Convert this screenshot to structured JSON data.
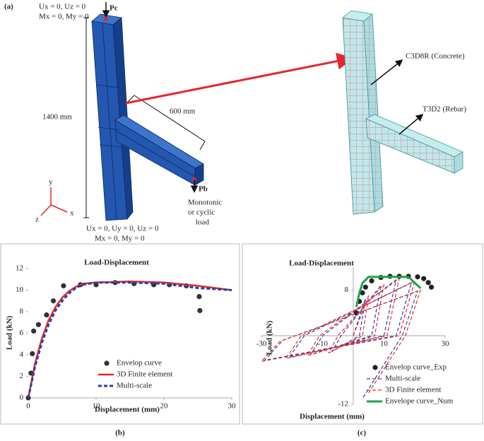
{
  "panel_a": {
    "label": "(a)",
    "top_load": "Pc",
    "top_bc_1": "Ux = 0, Uz = 0",
    "top_bc_2": "Mx = 0, My = 0",
    "height_dim": "1400 mm",
    "beam_dim": "600 mm",
    "beam_load": "Pb",
    "load_note": [
      "Monotonic",
      "or cyclic",
      "load"
    ],
    "bottom_bc_1": "Ux = 0, Uy = 0, Uz = 0",
    "bottom_bc_2": "Mx = 0, My = 0",
    "concrete_label": "C3D8R (Concrete)",
    "rebar_label": "T3D2 (Rebar)",
    "axis_y": "y",
    "axis_x": "x",
    "axis_z": "z"
  },
  "chart_data": [
    {
      "type": "line",
      "panel_label": "(b)",
      "title": "Load-Displacement",
      "x_label": "Displacement (mm)",
      "y_label": "Load (kN)",
      "xlim": [
        0,
        30
      ],
      "xticks": [
        0,
        10,
        20,
        30
      ],
      "ylim": [
        0,
        12
      ],
      "yticks": [
        0,
        2,
        4,
        6,
        8,
        10,
        12
      ],
      "axes_at_origin": false,
      "legend": "lower right",
      "series": [
        {
          "name": "Envelop curve",
          "color": "#333333",
          "style": "markers",
          "x": [
            0,
            0.4,
            0.6,
            0.8,
            1.5,
            2.7,
            3.7,
            5.2,
            7.7,
            10,
            12.8,
            15.6,
            18.5,
            20.8,
            23.3,
            25.2,
            25.3
          ],
          "values": [
            0,
            2.3,
            4.1,
            6.2,
            6.8,
            7.7,
            9.0,
            10.4,
            10.5,
            10.5,
            10.7,
            10.6,
            10.5,
            10.5,
            10.4,
            9.4,
            8.1
          ]
        },
        {
          "name": "3D Finite element",
          "color": "#e8262b",
          "style": "solid",
          "line_width": 2.5,
          "x": [
            0,
            1,
            2,
            3,
            4,
            5,
            6,
            7,
            8,
            10,
            15,
            20,
            25,
            30
          ],
          "values": [
            0,
            3.2,
            5.5,
            7.2,
            8.4,
            9.3,
            9.9,
            10.3,
            10.6,
            10.7,
            10.8,
            10.7,
            10.4,
            10.0
          ]
        },
        {
          "name": "Multi-scale",
          "color": "#2244a8",
          "style": "dashed",
          "line_width": 3,
          "x": [
            0,
            1,
            2,
            3,
            4,
            5,
            6,
            7,
            8,
            10,
            15,
            20,
            25,
            30
          ],
          "values": [
            0,
            2.9,
            5.1,
            6.8,
            8.1,
            9.0,
            9.7,
            10.2,
            10.5,
            10.7,
            10.7,
            10.6,
            10.2,
            10.0
          ]
        }
      ]
    },
    {
      "type": "line",
      "panel_label": "(c)",
      "title": "Load-Displacement",
      "x_label": "Displacement (mm)",
      "y_label": "Load (kN)",
      "xlim": [
        -30,
        30
      ],
      "xticks": [
        -30,
        -10,
        10,
        30
      ],
      "ylim": [
        -12,
        12
      ],
      "yticks": [
        -12,
        8
      ],
      "axes_at_origin": true,
      "legend": "lower right",
      "series": [
        {
          "name": "Envelop curve_Exp",
          "color": "#222222",
          "style": "markers",
          "x": [
            1,
            2,
            3,
            4,
            6,
            9,
            12,
            15,
            18,
            21,
            23,
            24.5,
            25.5
          ],
          "values": [
            4,
            6,
            7.5,
            8.5,
            9.6,
            10.2,
            10.4,
            10.4,
            10.4,
            10.3,
            10,
            9.3,
            8.5
          ]
        },
        {
          "name": "Multi-scale",
          "color": "#2244a8",
          "style": "dashed",
          "line_width": 1.2,
          "x": [
            0,
            4,
            2,
            -7,
            -4,
            9,
            6,
            -14,
            -10,
            14,
            10,
            -21,
            -16,
            19,
            14,
            -29,
            -23,
            21,
            16,
            3
          ],
          "values": [
            0,
            6.5,
            0,
            -2.8,
            0,
            8.8,
            0,
            -3.3,
            0,
            9.8,
            0,
            -3.8,
            0,
            9.3,
            0,
            -4.3,
            -0.8,
            7.8,
            0,
            -11
          ]
        },
        {
          "name": "3D Finite element",
          "color": "#e8262b",
          "style": "dashed",
          "line_width": 1.2,
          "x": [
            0,
            5,
            3,
            -8,
            -5,
            10,
            7,
            -15,
            -11,
            15,
            11,
            -22,
            -17,
            20,
            15,
            -30,
            -24,
            22,
            17,
            5
          ],
          "values": [
            0,
            7,
            0,
            -3,
            0,
            9,
            0,
            -3.5,
            0,
            10,
            0,
            -4,
            0,
            9.5,
            0,
            -4.5,
            -1,
            8,
            0,
            -10
          ]
        },
        {
          "name": "Envelope curve_Num",
          "color": "#1fa34a",
          "style": "solid",
          "line_width": 3,
          "x": [
            1,
            2,
            3,
            5,
            18,
            22
          ],
          "values": [
            5,
            7.5,
            9.2,
            10.3,
            10.3,
            8.3
          ]
        }
      ]
    }
  ]
}
